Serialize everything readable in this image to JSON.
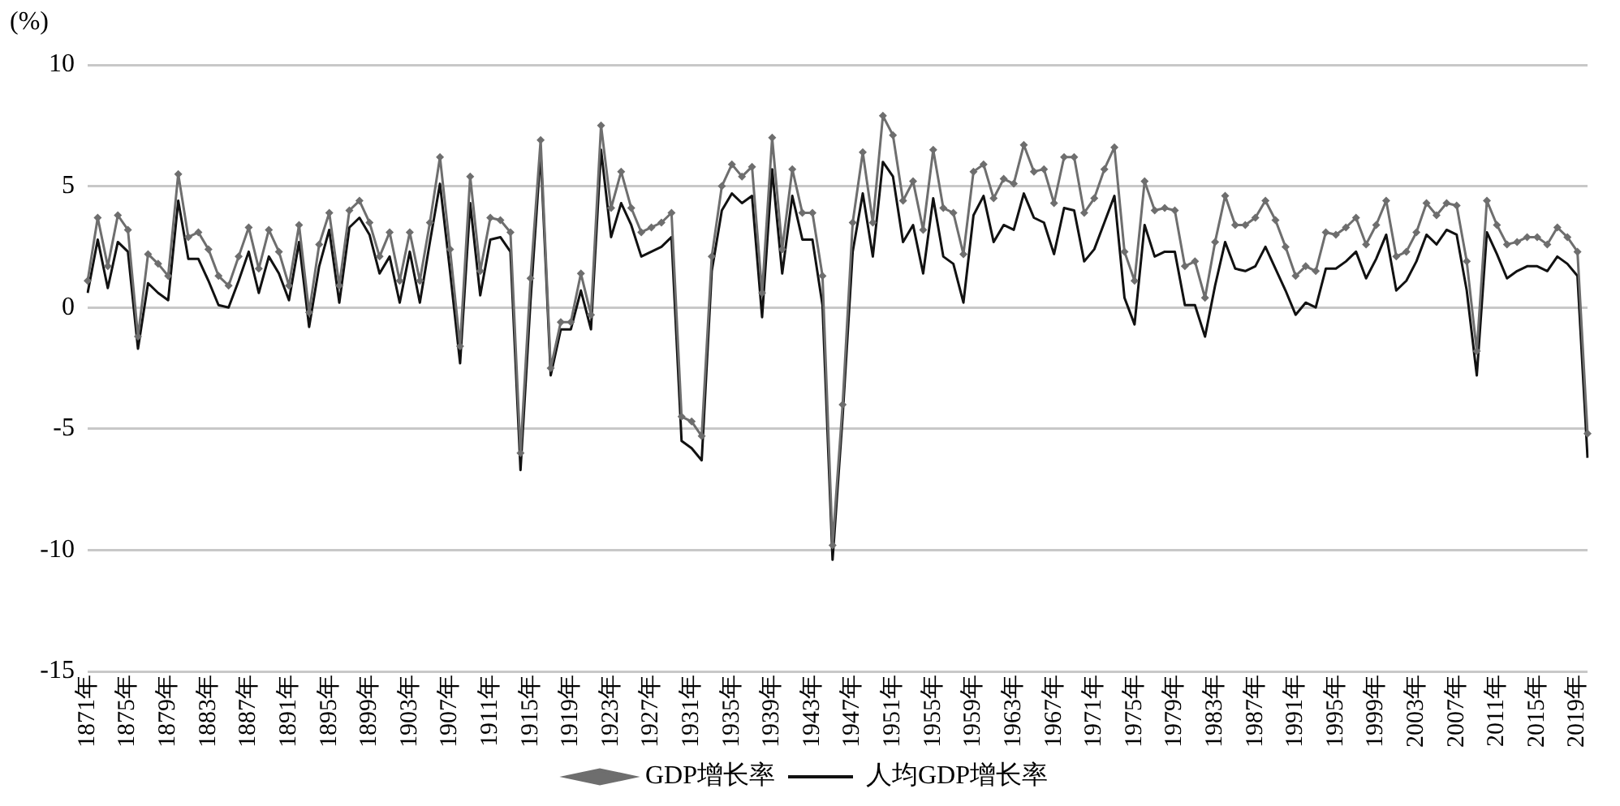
{
  "chart_data": {
    "type": "line",
    "ylabel": "(%)",
    "categories": [
      "1871年",
      null,
      null,
      null,
      "1875年",
      null,
      null,
      null,
      "1879年",
      null,
      null,
      null,
      "1883年",
      null,
      null,
      null,
      "1887年",
      null,
      null,
      null,
      "1891年",
      null,
      null,
      null,
      "1895年",
      null,
      null,
      null,
      "1899年",
      null,
      null,
      null,
      "1903年",
      null,
      null,
      null,
      "1907年",
      null,
      null,
      null,
      "1911年",
      null,
      null,
      null,
      "1915年",
      null,
      null,
      null,
      "1919年",
      null,
      null,
      null,
      "1923年",
      null,
      null,
      null,
      "1927年",
      null,
      null,
      null,
      "1931年",
      null,
      null,
      null,
      "1935年",
      null,
      null,
      null,
      "1939年",
      null,
      null,
      null,
      "1943年",
      null,
      null,
      null,
      "1947年",
      null,
      null,
      null,
      "1951年",
      null,
      null,
      null,
      "1955年",
      null,
      null,
      null,
      "1959年",
      null,
      null,
      null,
      "1963年",
      null,
      null,
      null,
      "1967年",
      null,
      null,
      null,
      "1971年",
      null,
      null,
      null,
      "1975年",
      null,
      null,
      null,
      "1979年",
      null,
      null,
      null,
      "1983年",
      null,
      null,
      null,
      "1987年",
      null,
      null,
      null,
      "1991年",
      null,
      null,
      null,
      "1995年",
      null,
      null,
      null,
      "1999年",
      null,
      null,
      null,
      "2003年",
      null,
      null,
      null,
      "2007年",
      null,
      null,
      null,
      "2011年",
      null,
      null,
      null,
      "2015年",
      null,
      null,
      null,
      "2019年",
      null
    ],
    "series": [
      {
        "name": "GDP增长率",
        "color": "#6e6e6e",
        "marker": "diamond",
        "values": [
          1.1,
          3.7,
          1.7,
          3.8,
          3.2,
          -1.2,
          2.2,
          1.8,
          1.3,
          5.5,
          2.9,
          3.1,
          2.4,
          1.3,
          0.9,
          2.1,
          3.3,
          1.6,
          3.2,
          2.3,
          0.9,
          3.4,
          -0.2,
          2.6,
          3.9,
          0.9,
          4.0,
          4.4,
          3.5,
          2.1,
          3.1,
          1.1,
          3.1,
          1.1,
          3.5,
          6.2,
          2.4,
          -1.6,
          5.4,
          1.5,
          3.7,
          3.6,
          3.1,
          -6.0,
          1.2,
          6.9,
          -2.5,
          -0.6,
          -0.6,
          1.4,
          -0.3,
          7.5,
          4.1,
          5.6,
          4.1,
          3.1,
          3.3,
          3.5,
          3.9,
          -4.5,
          -4.7,
          -5.3,
          2.1,
          5.0,
          5.9,
          5.4,
          5.8,
          0.6,
          7.0,
          2.4,
          5.7,
          3.9,
          3.9,
          1.3,
          -9.8,
          -4.0,
          3.5,
          6.4,
          3.5,
          7.9,
          7.1,
          4.4,
          5.2,
          3.2,
          6.5,
          4.1,
          3.9,
          2.2,
          5.6,
          5.9,
          4.5,
          5.3,
          5.1,
          6.7,
          5.6,
          5.7,
          4.3,
          6.2,
          6.2,
          3.9,
          4.5,
          5.7,
          6.6,
          2.3,
          1.1,
          5.2,
          4.0,
          4.1,
          4.0,
          1.7,
          1.9,
          0.4,
          2.7,
          4.6,
          3.4,
          3.4,
          3.7,
          4.4,
          3.6,
          2.5,
          1.3,
          1.7,
          1.5,
          3.1,
          3.0,
          3.3,
          3.7,
          2.6,
          3.4,
          4.4,
          2.1,
          2.3,
          3.1,
          4.3,
          3.8,
          4.3,
          4.2,
          1.9,
          -1.8,
          4.4,
          3.4,
          2.6,
          2.7,
          2.9,
          2.9,
          2.6,
          3.3,
          2.9,
          2.3,
          -5.2
        ]
      },
      {
        "name": "人均GDP增长率",
        "color": "#111111",
        "marker": "none",
        "values": [
          0.6,
          2.8,
          0.8,
          2.7,
          2.3,
          -1.7,
          1.0,
          0.6,
          0.3,
          4.4,
          2.0,
          2.0,
          1.1,
          0.1,
          0.0,
          1.1,
          2.3,
          0.6,
          2.1,
          1.4,
          0.3,
          2.7,
          -0.8,
          1.7,
          3.2,
          0.2,
          3.3,
          3.7,
          3.0,
          1.4,
          2.1,
          0.2,
          2.3,
          0.2,
          2.7,
          5.1,
          1.5,
          -2.3,
          4.3,
          0.5,
          2.8,
          2.9,
          2.3,
          -6.7,
          0.3,
          6.4,
          -2.8,
          -0.9,
          -0.9,
          0.7,
          -0.9,
          6.5,
          2.9,
          4.3,
          3.4,
          2.1,
          2.3,
          2.5,
          2.9,
          -5.5,
          -5.8,
          -6.3,
          1.5,
          4.0,
          4.7,
          4.3,
          4.6,
          -0.4,
          5.7,
          1.4,
          4.6,
          2.8,
          2.8,
          0.1,
          -10.4,
          -4.5,
          2.3,
          4.7,
          2.1,
          6.0,
          5.4,
          2.7,
          3.4,
          1.4,
          4.5,
          2.1,
          1.8,
          0.2,
          3.8,
          4.6,
          2.7,
          3.4,
          3.2,
          4.7,
          3.7,
          3.5,
          2.2,
          4.1,
          4.0,
          1.9,
          2.4,
          3.5,
          4.6,
          0.4,
          -0.7,
          3.4,
          2.1,
          2.3,
          2.3,
          0.1,
          0.1,
          -1.2,
          0.9,
          2.7,
          1.6,
          1.5,
          1.7,
          2.5,
          1.6,
          0.7,
          -0.3,
          0.2,
          0.0,
          1.6,
          1.6,
          1.9,
          2.3,
          1.2,
          2.0,
          3.0,
          0.7,
          1.1,
          1.9,
          3.0,
          2.6,
          3.2,
          3.0,
          0.7,
          -2.8,
          3.1,
          2.2,
          1.2,
          1.5,
          1.7,
          1.7,
          1.5,
          2.1,
          1.8,
          1.3,
          -6.2
        ]
      }
    ],
    "ylim": [
      -15,
      10
    ],
    "yticks": [
      -15,
      -10,
      -5,
      0,
      5,
      10
    ],
    "grid": "y",
    "legend": "bottom",
    "line_style": "solid"
  }
}
